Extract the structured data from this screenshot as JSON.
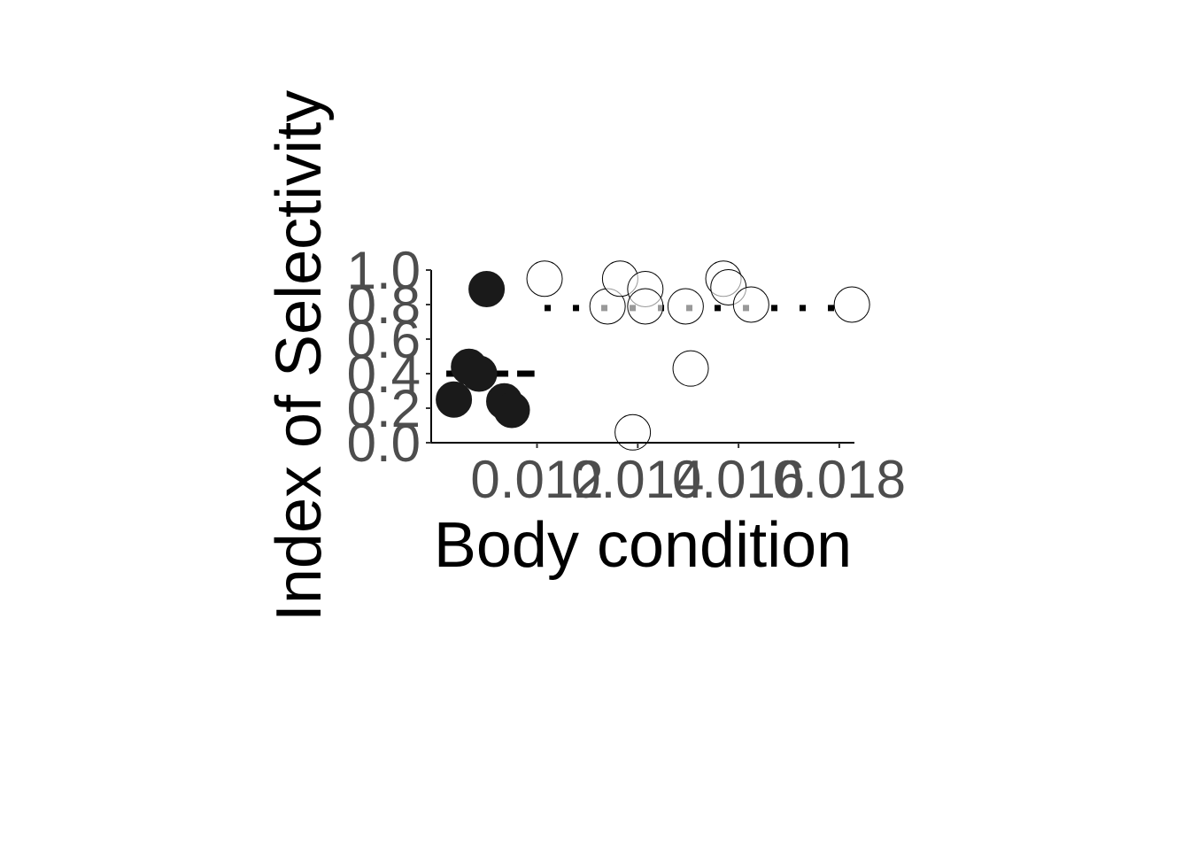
{
  "chart_data": {
    "type": "scatter",
    "title": "",
    "xlabel": "Body condition",
    "ylabel": "Index of Selectivity",
    "xlim": [
      0.0099,
      0.0183
    ],
    "ylim": [
      0.0,
      1.0
    ],
    "x_ticks": [
      0.012,
      0.014,
      0.016,
      0.018
    ],
    "x_tick_labels": [
      "0.012",
      "0.014",
      "0.016",
      "0.018"
    ],
    "y_ticks": [
      0.0,
      0.2,
      0.4,
      0.6,
      0.8,
      1.0
    ],
    "y_tick_labels": [
      "0.0",
      "0.2",
      "0.4",
      "0.6",
      "0.8",
      "1.0"
    ],
    "grid": false,
    "legend": "none",
    "series": [
      {
        "color": "#1a1a1a",
        "marker": "filled-circle",
        "points": [
          {
            "x": 0.01035,
            "y": 0.25
          },
          {
            "x": 0.01065,
            "y": 0.44
          },
          {
            "x": 0.01085,
            "y": 0.4
          },
          {
            "x": 0.011,
            "y": 0.89
          },
          {
            "x": 0.01135,
            "y": 0.24
          },
          {
            "x": 0.0115,
            "y": 0.19
          }
        ],
        "mean_line": {
          "x_start": 0.0102,
          "x_end": 0.01195,
          "y": 0.4,
          "style": "dashed"
        }
      },
      {
        "color": "#ffffff",
        "marker": "open-circle",
        "points": [
          {
            "x": 0.01215,
            "y": 0.95
          },
          {
            "x": 0.0134,
            "y": 0.79
          },
          {
            "x": 0.01365,
            "y": 0.95
          },
          {
            "x": 0.0139,
            "y": 0.06
          },
          {
            "x": 0.01415,
            "y": 0.89
          },
          {
            "x": 0.01415,
            "y": 0.79
          },
          {
            "x": 0.01495,
            "y": 0.79
          },
          {
            "x": 0.01505,
            "y": 0.43
          },
          {
            "x": 0.0157,
            "y": 0.95
          },
          {
            "x": 0.0158,
            "y": 0.9
          },
          {
            "x": 0.01625,
            "y": 0.8
          },
          {
            "x": 0.01825,
            "y": 0.8
          }
        ],
        "mean_line": {
          "x_start": 0.01215,
          "x_end": 0.01825,
          "y": 0.78,
          "style": "dotted"
        }
      }
    ]
  }
}
